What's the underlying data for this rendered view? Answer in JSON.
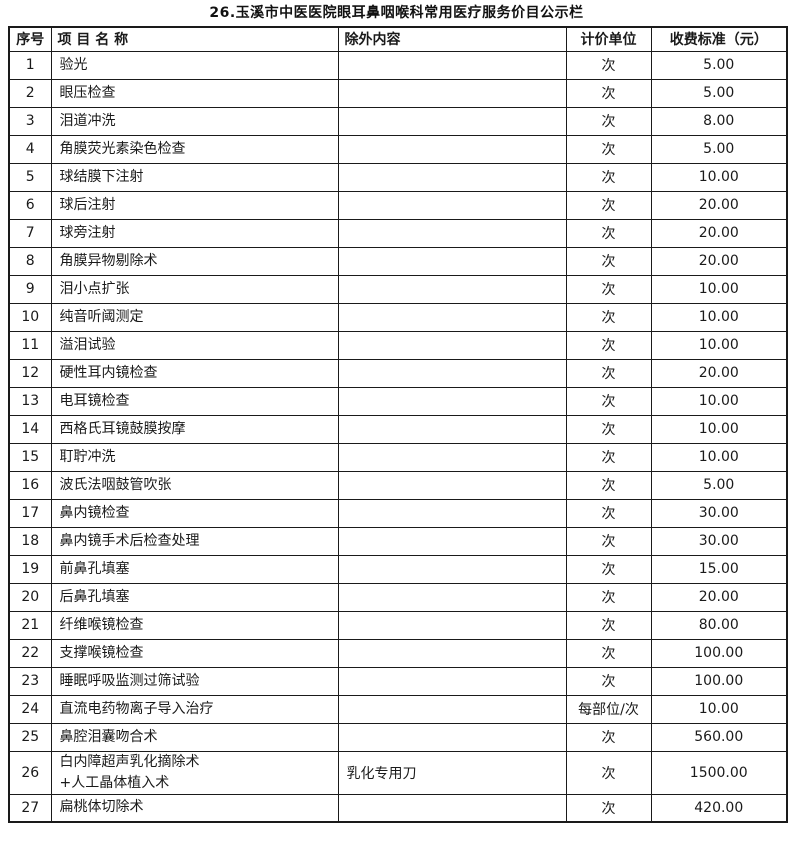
{
  "title": "26.玉溪市中医医院眼耳鼻咽喉科常用医疗服务价目公示栏",
  "colors": {
    "background": "#ffffff",
    "border": "#1a1a1a",
    "text": "#1a1a1a"
  },
  "table": {
    "headers": {
      "no": "序号",
      "name": "项 目 名 称",
      "excluded": "除外内容",
      "unit": "计价单位",
      "price": "收费标准（元）"
    },
    "rows": [
      {
        "no": "1",
        "name": "验光",
        "excluded": "",
        "unit": "次",
        "price": "5.00"
      },
      {
        "no": "2",
        "name": "眼压检查",
        "excluded": "",
        "unit": "次",
        "price": "5.00"
      },
      {
        "no": "3",
        "name": "泪道冲洗",
        "excluded": "",
        "unit": "次",
        "price": "8.00"
      },
      {
        "no": "4",
        "name": "角膜荧光素染色检查",
        "excluded": "",
        "unit": "次",
        "price": "5.00"
      },
      {
        "no": "5",
        "name": "球结膜下注射",
        "excluded": "",
        "unit": "次",
        "price": "10.00"
      },
      {
        "no": "6",
        "name": "球后注射",
        "excluded": "",
        "unit": "次",
        "price": "20.00"
      },
      {
        "no": "7",
        "name": "球旁注射",
        "excluded": "",
        "unit": "次",
        "price": "20.00"
      },
      {
        "no": "8",
        "name": "角膜异物剔除术",
        "excluded": "",
        "unit": "次",
        "price": "20.00"
      },
      {
        "no": "9",
        "name": "泪小点扩张",
        "excluded": "",
        "unit": "次",
        "price": "10.00"
      },
      {
        "no": "10",
        "name": "纯音听阈测定",
        "excluded": "",
        "unit": "次",
        "price": "10.00"
      },
      {
        "no": "11",
        "name": "溢泪试验",
        "excluded": "",
        "unit": "次",
        "price": "10.00"
      },
      {
        "no": "12",
        "name": "硬性耳内镜检查",
        "excluded": "",
        "unit": "次",
        "price": "20.00"
      },
      {
        "no": "13",
        "name": "电耳镜检查",
        "excluded": "",
        "unit": "次",
        "price": "10.00"
      },
      {
        "no": "14",
        "name": "西格氏耳镜鼓膜按摩",
        "excluded": "",
        "unit": "次",
        "price": "10.00"
      },
      {
        "no": "15",
        "name": "耵聍冲洗",
        "excluded": "",
        "unit": "次",
        "price": "10.00"
      },
      {
        "no": "16",
        "name": "波氏法咽鼓管吹张",
        "excluded": "",
        "unit": "次",
        "price": "5.00"
      },
      {
        "no": "17",
        "name": "鼻内镜检查",
        "excluded": "",
        "unit": "次",
        "price": "30.00"
      },
      {
        "no": "18",
        "name": "鼻内镜手术后检查处理",
        "excluded": "",
        "unit": "次",
        "price": "30.00"
      },
      {
        "no": "19",
        "name": "前鼻孔填塞",
        "excluded": "",
        "unit": "次",
        "price": "15.00"
      },
      {
        "no": "20",
        "name": "后鼻孔填塞",
        "excluded": "",
        "unit": "次",
        "price": "20.00"
      },
      {
        "no": "21",
        "name": "纤维喉镜检查",
        "excluded": "",
        "unit": "次",
        "price": "80.00"
      },
      {
        "no": "22",
        "name": "支撑喉镜检查",
        "excluded": "",
        "unit": "次",
        "price": "100.00"
      },
      {
        "no": "23",
        "name": "睡眠呼吸监测过筛试验",
        "excluded": "",
        "unit": "次",
        "price": "100.00"
      },
      {
        "no": "24",
        "name": "直流电药物离子导入治疗",
        "excluded": "",
        "unit": "每部位/次",
        "price": "10.00"
      },
      {
        "no": "25",
        "name": "鼻腔泪囊吻合术",
        "excluded": "",
        "unit": "次",
        "price": "560.00"
      },
      {
        "no": "26",
        "name": "白内障超声乳化摘除术\n+人工晶体植入术",
        "excluded": "乳化专用刀",
        "unit": "次",
        "price": "1500.00"
      },
      {
        "no": "27",
        "name": "扁桃体切除术",
        "excluded": "",
        "unit": "次",
        "price": "420.00"
      }
    ]
  }
}
